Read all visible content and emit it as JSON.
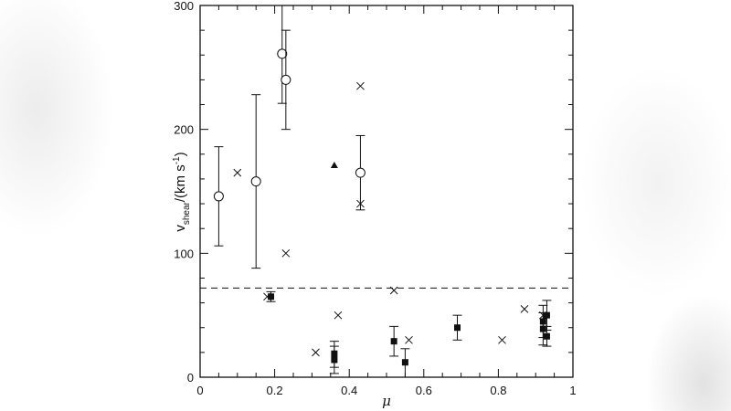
{
  "chart_data": {
    "type": "scatter",
    "title": "",
    "xlabel": "μ",
    "ylabel": "v_shear/(km s^-1)",
    "ylabel_parts": {
      "main": "v",
      "sub": "shear",
      "rest": "/(km s",
      "sup": "-1",
      "close": ")"
    },
    "xlim": [
      0,
      1
    ],
    "ylim": [
      0,
      300
    ],
    "x_ticks": [
      "0",
      "0.2",
      "0.4",
      "0.6",
      "0.8",
      "1"
    ],
    "y_ticks": [
      "0",
      "100",
      "200",
      "300"
    ],
    "grid": false,
    "legend": null,
    "reference_line": {
      "style": "dashed",
      "y": 72
    },
    "series": [
      {
        "name": "open circles",
        "marker": "open-circle",
        "points": [
          {
            "x": 0.05,
            "y": 146,
            "ylo": 106,
            "yhi": 186
          },
          {
            "x": 0.15,
            "y": 158,
            "ylo": 88,
            "yhi": 228
          },
          {
            "x": 0.22,
            "y": 261,
            "ylo": 221,
            "yhi": 300
          },
          {
            "x": 0.23,
            "y": 240,
            "ylo": 200,
            "yhi": 280
          },
          {
            "x": 0.43,
            "y": 165,
            "ylo": 135,
            "yhi": 195
          }
        ]
      },
      {
        "name": "crosses",
        "marker": "cross",
        "points": [
          {
            "x": 0.1,
            "y": 165
          },
          {
            "x": 0.23,
            "y": 100
          },
          {
            "x": 0.43,
            "y": 235
          },
          {
            "x": 0.43,
            "y": 140
          },
          {
            "x": 0.18,
            "y": 65
          },
          {
            "x": 0.31,
            "y": 20
          },
          {
            "x": 0.37,
            "y": 50
          },
          {
            "x": 0.52,
            "y": 70
          },
          {
            "x": 0.56,
            "y": 30
          },
          {
            "x": 0.81,
            "y": 30
          },
          {
            "x": 0.87,
            "y": 55
          },
          {
            "x": 0.92,
            "y": 50
          }
        ]
      },
      {
        "name": "filled triangle",
        "marker": "filled-triangle",
        "points": [
          {
            "x": 0.36,
            "y": 171
          }
        ]
      },
      {
        "name": "filled squares",
        "marker": "filled-square",
        "points": [
          {
            "x": 0.19,
            "y": 65,
            "ylo": 61,
            "yhi": 69
          },
          {
            "x": 0.36,
            "y": 19,
            "ylo": 8,
            "yhi": 29
          },
          {
            "x": 0.36,
            "y": 14,
            "ylo": 3,
            "yhi": 25
          },
          {
            "x": 0.52,
            "y": 29,
            "ylo": 17,
            "yhi": 41
          },
          {
            "x": 0.55,
            "y": 12,
            "ylo": 0,
            "yhi": 23
          },
          {
            "x": 0.69,
            "y": 40,
            "ylo": 30,
            "yhi": 50
          },
          {
            "x": 0.92,
            "y": 45,
            "ylo": 32,
            "yhi": 58
          },
          {
            "x": 0.92,
            "y": 39,
            "ylo": 26,
            "yhi": 52
          },
          {
            "x": 0.93,
            "y": 50,
            "ylo": 38,
            "yhi": 62
          },
          {
            "x": 0.93,
            "y": 33,
            "ylo": 25,
            "yhi": 41
          }
        ]
      }
    ]
  },
  "colors": {
    "ink": "#111111",
    "background": "#ffffff"
  }
}
